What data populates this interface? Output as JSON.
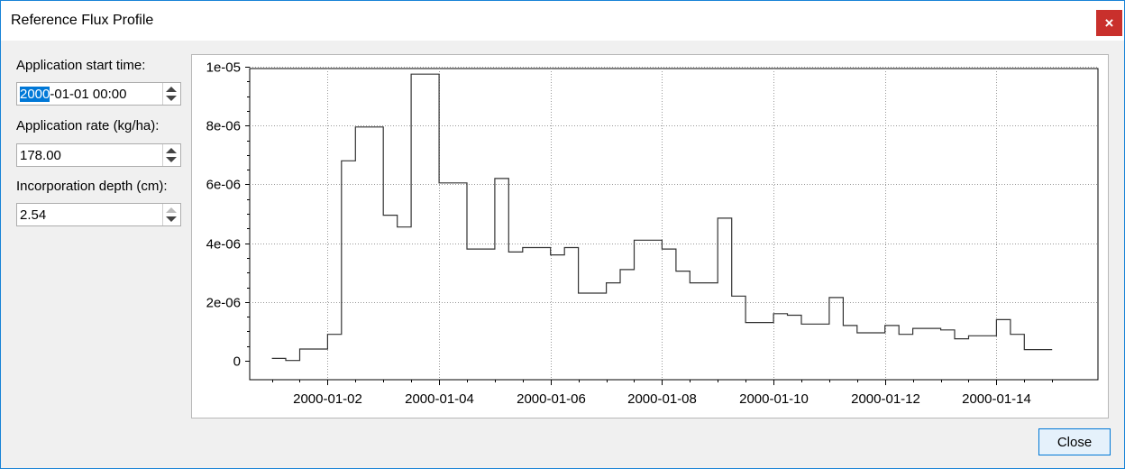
{
  "window": {
    "title": "Reference Flux Profile",
    "close_glyph": "×"
  },
  "form": {
    "start_label": "Application start time:",
    "start_value_selected": "2000",
    "start_value_rest": "-01-01 00:00",
    "rate_label": "Application rate (kg/ha):",
    "rate_value": "178.00",
    "depth_label": "Incorporation depth (cm):",
    "depth_value": "2.54"
  },
  "footer": {
    "close_label": "Close"
  },
  "chart_data": {
    "type": "line",
    "step": true,
    "xlabel": "",
    "ylabel": "",
    "grid": true,
    "x_range": [
      "2000-01-01 00:00",
      "2000-01-15 00:00"
    ],
    "ylim": [
      0,
      1e-05
    ],
    "yticks": [
      "0",
      "2e-06",
      "4e-06",
      "6e-06",
      "8e-06",
      "1e-05"
    ],
    "xticks": [
      "2000-01-02",
      "2000-01-04",
      "2000-01-06",
      "2000-01-08",
      "2000-01-10",
      "2000-01-12",
      "2000-01-14"
    ],
    "series": [
      {
        "x": [
          "2000-01-01 00:00",
          "2000-01-01 06:00",
          "2000-01-01 12:00",
          "2000-01-01 18:00",
          "2000-01-02 00:00",
          "2000-01-02 06:00",
          "2000-01-02 12:00",
          "2000-01-02 18:00",
          "2000-01-03 00:00",
          "2000-01-03 06:00",
          "2000-01-03 12:00",
          "2000-01-03 18:00",
          "2000-01-04 00:00",
          "2000-01-04 06:00",
          "2000-01-04 12:00",
          "2000-01-04 18:00",
          "2000-01-05 00:00",
          "2000-01-05 06:00",
          "2000-01-05 12:00",
          "2000-01-05 18:00",
          "2000-01-06 00:00",
          "2000-01-06 06:00",
          "2000-01-06 12:00",
          "2000-01-06 18:00",
          "2000-01-07 00:00",
          "2000-01-07 06:00",
          "2000-01-07 12:00",
          "2000-01-07 18:00",
          "2000-01-08 00:00",
          "2000-01-08 06:00",
          "2000-01-08 12:00",
          "2000-01-08 18:00",
          "2000-01-09 00:00",
          "2000-01-09 06:00",
          "2000-01-09 12:00",
          "2000-01-09 18:00",
          "2000-01-10 00:00",
          "2000-01-10 06:00",
          "2000-01-10 12:00",
          "2000-01-10 18:00",
          "2000-01-11 00:00",
          "2000-01-11 06:00",
          "2000-01-11 12:00",
          "2000-01-11 18:00",
          "2000-01-12 00:00",
          "2000-01-12 06:00",
          "2000-01-12 12:00",
          "2000-01-12 18:00",
          "2000-01-13 00:00",
          "2000-01-13 06:00",
          "2000-01-13 12:00",
          "2000-01-13 18:00",
          "2000-01-14 00:00",
          "2000-01-14 06:00",
          "2000-01-14 12:00",
          "2000-01-14 18:00",
          "2000-01-15 00:00"
        ],
        "y": [
          8e-08,
          1e-08,
          4e-07,
          4e-07,
          9e-07,
          6.8e-06,
          7.95e-06,
          7.95e-06,
          4.95e-06,
          4.55e-06,
          9.75e-06,
          9.75e-06,
          6.05e-06,
          6.05e-06,
          3.8e-06,
          3.8e-06,
          6.2e-06,
          3.7e-06,
          3.85e-06,
          3.85e-06,
          3.6e-06,
          3.85e-06,
          2.3e-06,
          2.3e-06,
          2.65e-06,
          3.1e-06,
          4.1e-06,
          4.1e-06,
          3.8e-06,
          3.05e-06,
          2.65e-06,
          2.65e-06,
          4.85e-06,
          2.2e-06,
          1.3e-06,
          1.3e-06,
          1.6e-06,
          1.55e-06,
          1.25e-06,
          1.25e-06,
          2.15e-06,
          1.2e-06,
          9.5e-07,
          9.5e-07,
          1.2e-06,
          9e-07,
          1.1e-06,
          1.1e-06,
          1.05e-06,
          7.5e-07,
          8.5e-07,
          8.5e-07,
          1.4e-06,
          9e-07,
          3.8e-07,
          3.8e-07,
          3.8e-07
        ]
      }
    ]
  }
}
